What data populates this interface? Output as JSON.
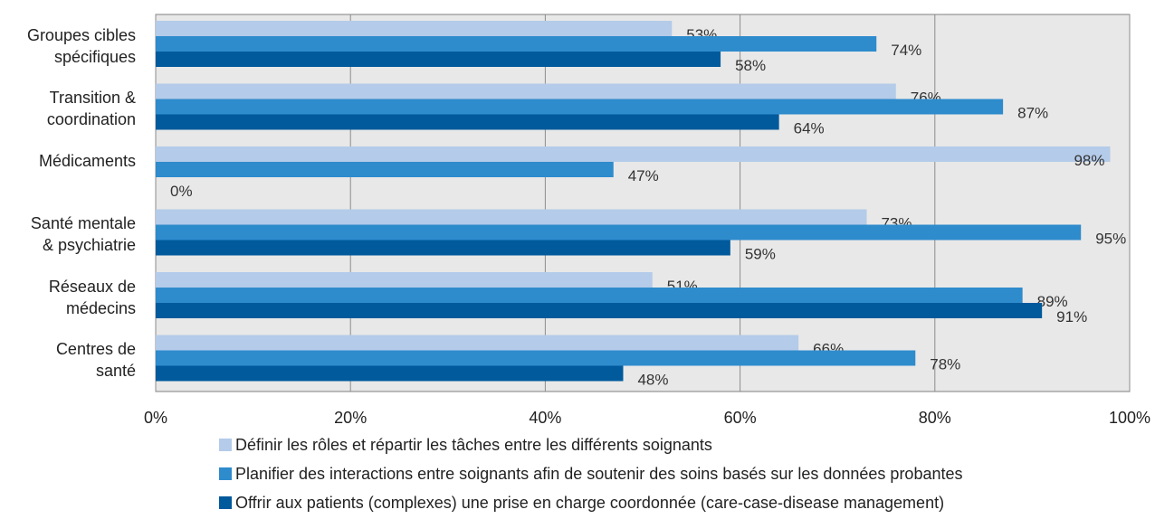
{
  "chart_data": {
    "type": "barh",
    "categories": [
      "Groupes cibles\nspécifiques",
      "Transition &\ncoordination",
      "Médicaments",
      "Santé mentale\n& psychiatrie",
      "Réseaux de\nmédecins",
      "Centres de\nsanté"
    ],
    "series": [
      {
        "name": "Définir les rôles et répartir les tâches entre les différents soignants",
        "color": "#b4cbe9",
        "values": [
          53,
          76,
          98,
          73,
          51,
          66
        ],
        "value_labels": [
          "53%",
          "76%",
          "98%",
          "73%",
          "51%",
          "66%"
        ]
      },
      {
        "name": "Planifier des interactions entre soignants afin de soutenir des soins basés sur les données probantes",
        "color": "#2e8bcc",
        "values": [
          74,
          87,
          47,
          95,
          89,
          78
        ],
        "value_labels": [
          "74%",
          "87%",
          "47%",
          "95%",
          "89%",
          "78%"
        ]
      },
      {
        "name": "Offrir aux patients (complexes) une prise en charge coordonnée (care-case-disease management)",
        "color": "#005a9c",
        "values": [
          58,
          64,
          0,
          59,
          91,
          48
        ],
        "value_labels": [
          "58%",
          "64%",
          "0%",
          "59%",
          "91%",
          "48%"
        ]
      }
    ],
    "xlim": [
      0,
      100
    ],
    "xticks": [
      {
        "value": 0,
        "label": "0%"
      },
      {
        "value": 20,
        "label": "20%"
      },
      {
        "value": 40,
        "label": "40%"
      },
      {
        "value": 60,
        "label": "60%"
      },
      {
        "value": 80,
        "label": "80%"
      },
      {
        "value": 100,
        "label": "100%"
      }
    ],
    "grid": true
  }
}
